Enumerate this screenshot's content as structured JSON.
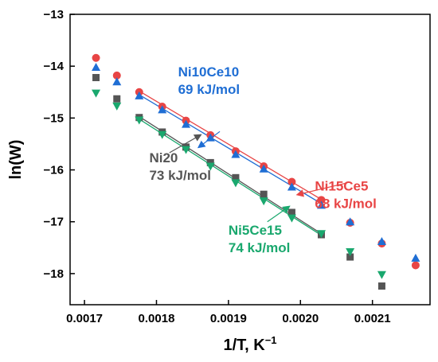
{
  "chart_data": {
    "type": "scatter",
    "title": "",
    "xlabel": "1/T, K",
    "xlabel_sup": "−1",
    "ylabel": "ln(W)",
    "xlim": [
      0.00168,
      0.00218
    ],
    "ylim": [
      -18.6,
      -13.0
    ],
    "xticks": [
      0.0017,
      0.0018,
      0.0019,
      0.002,
      0.0021
    ],
    "xtick_labels": [
      "0.0017",
      "0.0018",
      "0.0019",
      "0.0020",
      "0.0021"
    ],
    "yticks": [
      -18,
      -17,
      -16,
      -15,
      -14,
      -13
    ],
    "ytick_labels": [
      "−18",
      "−17",
      "−16",
      "−15",
      "−14",
      "−13"
    ],
    "grid": false,
    "legend": "none",
    "series": [
      {
        "color": "#e84545",
        "marker": "circle",
        "x": [
          0.001716,
          0.001745,
          0.001776,
          0.001808,
          0.001841,
          0.001875,
          0.00191,
          0.001949,
          0.001988,
          0.002029,
          0.002069,
          0.002113,
          0.00216
        ],
        "y": [
          -13.84,
          -14.18,
          -14.5,
          -14.78,
          -15.05,
          -15.33,
          -15.64,
          -15.93,
          -16.23,
          -16.58,
          -17.02,
          -17.42,
          -17.84
        ],
        "fit": {
          "x": [
            0.001776,
            0.002029
          ],
          "y": [
            -14.48,
            -16.57
          ]
        }
      },
      {
        "color": "#1f6ed4",
        "marker": "triangle-up",
        "x": [
          0.001716,
          0.001745,
          0.001776,
          0.001808,
          0.001841,
          0.001875,
          0.00191,
          0.001949,
          0.001988,
          0.002029,
          0.002069,
          0.002113,
          0.00216
        ],
        "y": [
          -14.02,
          -14.3,
          -14.57,
          -14.84,
          -15.12,
          -15.38,
          -15.7,
          -15.98,
          -16.33,
          -16.68,
          -17.0,
          -17.38,
          -17.7
        ],
        "fit": {
          "x": [
            0.001776,
            0.002029
          ],
          "y": [
            -14.55,
            -16.65
          ]
        }
      },
      {
        "color": "#555555",
        "marker": "square",
        "x": [
          0.001716,
          0.001745,
          0.001776,
          0.001808,
          0.001841,
          0.001875,
          0.00191,
          0.001949,
          0.001988,
          0.002029,
          0.002069,
          0.002113
        ],
        "y": [
          -14.22,
          -14.63,
          -14.99,
          -15.27,
          -15.56,
          -15.86,
          -16.15,
          -16.47,
          -16.82,
          -17.25,
          -17.68,
          -18.24
        ],
        "fit": {
          "x": [
            0.001776,
            0.002029
          ],
          "y": [
            -14.97,
            -17.23
          ]
        }
      },
      {
        "color": "#1aa86e",
        "marker": "triangle-down",
        "x": [
          0.001716,
          0.001745,
          0.001776,
          0.001808,
          0.001841,
          0.001875,
          0.00191,
          0.001949,
          0.001988,
          0.002029,
          0.002069,
          0.002113
        ],
        "y": [
          -14.52,
          -14.77,
          -15.04,
          -15.32,
          -15.61,
          -15.93,
          -16.25,
          -16.6,
          -16.93,
          -17.23,
          -17.58,
          -18.02
        ],
        "fit": {
          "x": [
            0.001776,
            0.002029
          ],
          "y": [
            -15.02,
            -17.26
          ]
        }
      }
    ],
    "annotations": [
      {
        "line1": "Ni10Ce10",
        "line2": "69 kJ/mol",
        "color": "#1f6ed4",
        "anchor": "start",
        "tx": 0.00183,
        "ty": -14.2,
        "ax": [
          0.001888,
          -15.26
        ],
        "bx": [
          0.001858,
          -15.57
        ]
      },
      {
        "line1": "Ni15Ce5",
        "line2": "68 kJ/mol",
        "color": "#e84545",
        "anchor": "start",
        "tx": 0.00202,
        "ty": -16.4,
        "ax": [
          0.002065,
          -16.25
        ],
        "bx": [
          0.001995,
          -16.48
        ]
      },
      {
        "line1": "Ni20",
        "line2": "73 kJ/mol",
        "color": "#555555",
        "anchor": "start",
        "tx": 0.00179,
        "ty": -15.85,
        "ax": [
          0.001818,
          -15.67
        ],
        "bx": [
          0.001862,
          -15.32
        ]
      },
      {
        "line1": "Ni5Ce15",
        "line2": "74 kJ/mol",
        "color": "#1aa86e",
        "anchor": "start",
        "tx": 0.0019,
        "ty": -17.25,
        "ax": [
          0.001954,
          -17.0
        ],
        "bx": [
          0.001985,
          -16.7
        ]
      }
    ]
  }
}
